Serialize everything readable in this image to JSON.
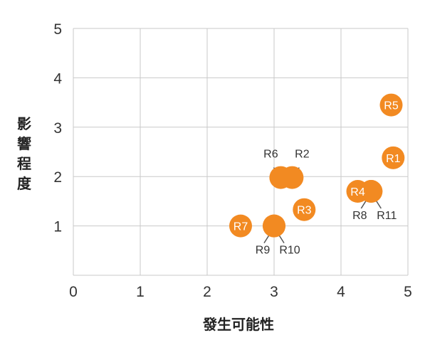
{
  "chart_data": {
    "type": "scatter",
    "title": "",
    "xlabel": "發生可能性",
    "ylabel": "影響程度",
    "xlim": [
      0,
      5
    ],
    "ylim": [
      0,
      5
    ],
    "xticks": [
      "0",
      "1",
      "2",
      "3",
      "4",
      "5"
    ],
    "yticks": [
      "1",
      "2",
      "3",
      "4",
      "5"
    ],
    "grid": true,
    "marker_color": "#F28A22",
    "label_color_inside": "#ffffff",
    "label_color_outside": "#333333",
    "points": [
      {
        "label": "R1",
        "x": 4.78,
        "y": 2.38,
        "label_position": "inside"
      },
      {
        "label": "R2",
        "x": 3.27,
        "y": 1.98,
        "label_position": "above"
      },
      {
        "label": "R3",
        "x": 3.45,
        "y": 1.33,
        "label_position": "inside"
      },
      {
        "label": "R4",
        "x": 4.25,
        "y": 1.7,
        "label_position": "inside"
      },
      {
        "label": "R5",
        "x": 4.75,
        "y": 3.45,
        "label_position": "inside"
      },
      {
        "label": "R6",
        "x": 3.1,
        "y": 1.98,
        "label_position": "above"
      },
      {
        "label": "R7",
        "x": 2.5,
        "y": 1.0,
        "label_position": "inside"
      },
      {
        "label": "R8",
        "x": 4.45,
        "y": 1.7,
        "label_position": "below"
      },
      {
        "label": "R9",
        "x": 3.0,
        "y": 1.0,
        "label_position": "below"
      },
      {
        "label": "R10",
        "x": 3.0,
        "y": 1.0,
        "label_position": "below"
      },
      {
        "label": "R11",
        "x": 4.45,
        "y": 1.7,
        "label_position": "below"
      }
    ]
  }
}
